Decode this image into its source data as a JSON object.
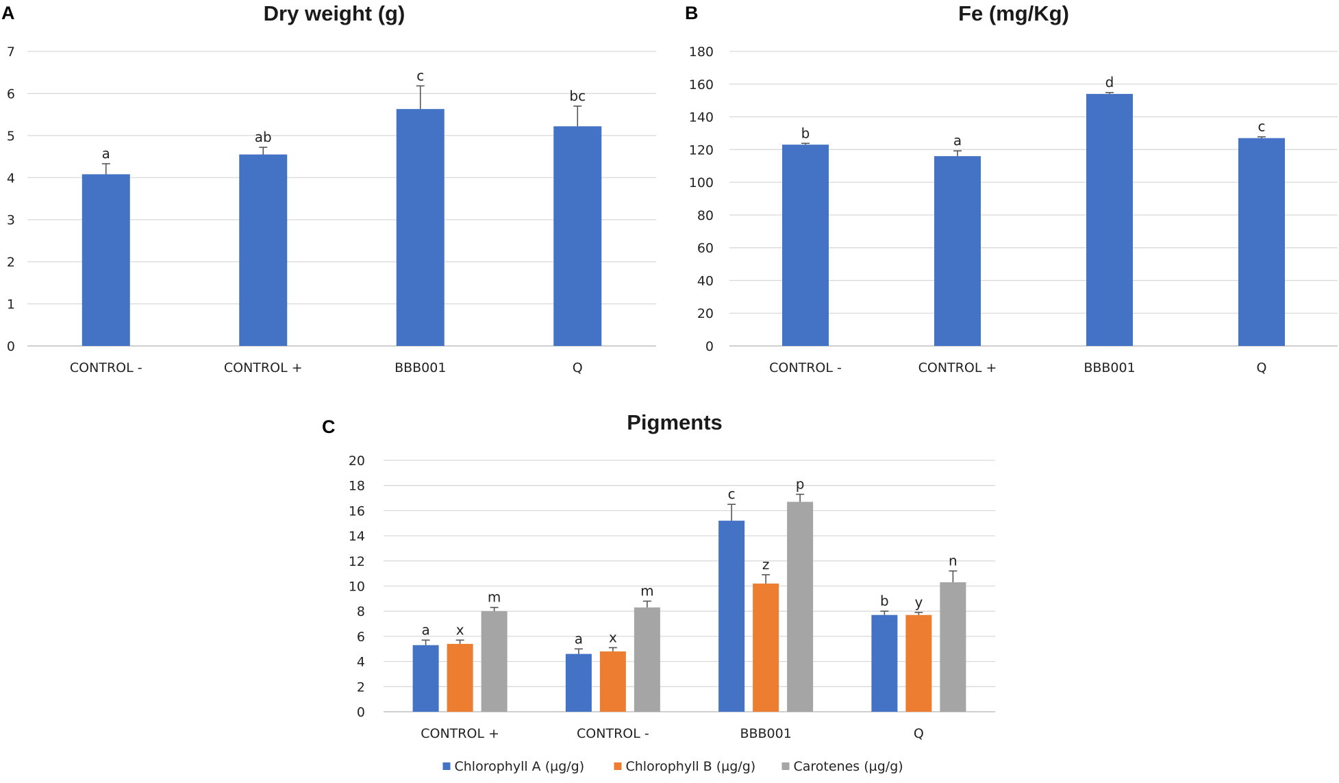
{
  "panels": {
    "A": "A",
    "B": "B",
    "C": "C"
  },
  "colors": {
    "series1": "#4472c4",
    "series2": "#ed7d31",
    "series3": "#a5a5a5"
  },
  "chart_data": [
    {
      "id": "A",
      "type": "bar",
      "title": "Dry weight (g)",
      "categories": [
        "CONTROL -",
        "CONTROL +",
        "BBB001",
        "Q"
      ],
      "series": [
        {
          "name": "Dry weight (g)",
          "values": [
            4.08,
            4.55,
            5.63,
            5.22
          ],
          "errors": [
            0.25,
            0.17,
            0.55,
            0.48
          ],
          "labels": [
            "a",
            "ab",
            "c",
            "bc"
          ]
        }
      ],
      "ylim": [
        0,
        7
      ],
      "yticks": [
        0,
        1,
        2,
        3,
        4,
        5,
        6,
        7
      ],
      "xlabel": "",
      "ylabel": ""
    },
    {
      "id": "B",
      "type": "bar",
      "title": "Fe (mg/Kg)",
      "categories": [
        "CONTROL -",
        "CONTROL +",
        "BBB001",
        "Q"
      ],
      "series": [
        {
          "name": "Fe (mg/Kg)",
          "values": [
            123,
            116,
            154,
            127
          ],
          "errors": [
            0.8,
            3.2,
            0.8,
            0.8
          ],
          "labels": [
            "b",
            "a",
            "d",
            "c"
          ]
        }
      ],
      "ylim": [
        0,
        180
      ],
      "yticks": [
        0,
        20,
        40,
        60,
        80,
        100,
        120,
        140,
        160,
        180
      ],
      "xlabel": "",
      "ylabel": ""
    },
    {
      "id": "C",
      "type": "bar",
      "title": "Pigments",
      "categories": [
        "CONTROL +",
        "CONTROL -",
        "BBB001",
        "Q"
      ],
      "series": [
        {
          "name": "Chlorophyll A (µg/g)",
          "values": [
            5.3,
            4.6,
            15.2,
            7.7
          ],
          "errors": [
            0.4,
            0.4,
            1.3,
            0.3
          ],
          "labels": [
            "a",
            "a",
            "c",
            "b"
          ]
        },
        {
          "name": "Chlorophyll B (µg/g)",
          "values": [
            5.4,
            4.8,
            10.2,
            7.7
          ],
          "errors": [
            0.3,
            0.3,
            0.7,
            0.2
          ],
          "labels": [
            "x",
            "x",
            "z",
            "y"
          ]
        },
        {
          "name": "Carotenes (µg/g)",
          "values": [
            8.0,
            8.3,
            16.7,
            10.3
          ],
          "errors": [
            0.3,
            0.5,
            0.6,
            0.9
          ],
          "labels": [
            "m",
            "m",
            "p",
            "n"
          ]
        }
      ],
      "ylim": [
        0,
        20
      ],
      "yticks": [
        0,
        2,
        4,
        6,
        8,
        10,
        12,
        14,
        16,
        18,
        20
      ],
      "legend": "bottom",
      "xlabel": "",
      "ylabel": ""
    }
  ]
}
